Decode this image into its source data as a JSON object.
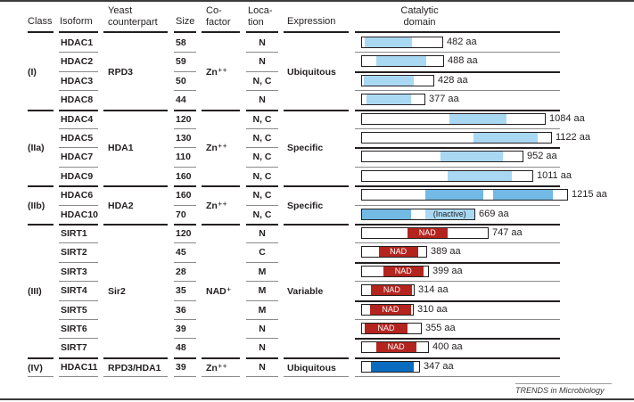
{
  "headers": {
    "class": "Class",
    "isoform": "Isoform",
    "yeast_line1": "Yeast",
    "yeast_line2": "counterpart",
    "size": "Size",
    "cofactor_line1": "Co-",
    "cofactor_line2": "factor",
    "location_line1": "Loca-",
    "location_line2": "tion",
    "expression": "Expression",
    "catalytic_line1": "Catalytic",
    "catalytic_line2": "domain"
  },
  "colors": {
    "class_I_domain": "#a9d8f3",
    "class_IIa_domain": "#a9d8f3",
    "class_IIb_domain": "#72b9e3",
    "class_III_domain": "#b4241f",
    "class_IV_domain": "#0a6cbf",
    "text": "#231f20"
  },
  "groups": [
    {
      "class": "(I)",
      "yeast": "RPD3",
      "cofactor": "Zn⁺⁺",
      "expression": "Ubiquitous",
      "rows": [
        {
          "isoform": "HDAC1",
          "size": "58",
          "location": "N",
          "length_label": "482 aa",
          "length": 482,
          "domains": [
            {
              "start": 0.03,
              "end": 0.62,
              "color": "#a9d8f3",
              "label": ""
            }
          ]
        },
        {
          "isoform": "HDAC2",
          "size": "59",
          "location": "N",
          "length_label": "488 aa",
          "length": 488,
          "domains": [
            {
              "start": 0.18,
              "end": 0.79,
              "color": "#a9d8f3",
              "label": ""
            }
          ]
        },
        {
          "isoform": "HDAC3",
          "size": "50",
          "location": "N, C",
          "length_label": "428 aa",
          "length": 428,
          "domains": [
            {
              "start": 0.02,
              "end": 0.73,
              "color": "#a9d8f3",
              "label": ""
            }
          ]
        },
        {
          "isoform": "HDAC8",
          "size": "44",
          "location": "N",
          "length_label": "377 aa",
          "length": 377,
          "domains": [
            {
              "start": 0.07,
              "end": 0.78,
              "color": "#a9d8f3",
              "label": ""
            }
          ]
        }
      ]
    },
    {
      "class": "(IIa)",
      "yeast": "HDA1",
      "cofactor": "Zn⁺⁺",
      "expression": "Specific",
      "rows": [
        {
          "isoform": "HDAC4",
          "size": "120",
          "location": "N, C",
          "length_label": "1084 aa",
          "length": 1084,
          "domains": [
            {
              "start": 0.48,
              "end": 0.79,
              "color": "#a9d8f3",
              "label": ""
            }
          ]
        },
        {
          "isoform": "HDAC5",
          "size": "130",
          "location": "N, C",
          "length_label": "1122 aa",
          "length": 1122,
          "domains": [
            {
              "start": 0.59,
              "end": 0.93,
              "color": "#a9d8f3",
              "label": ""
            }
          ]
        },
        {
          "isoform": "HDAC7",
          "size": "110",
          "location": "N, C",
          "length_label": "952 aa",
          "length": 952,
          "domains": [
            {
              "start": 0.49,
              "end": 0.88,
              "color": "#a9d8f3",
              "label": ""
            }
          ]
        },
        {
          "isoform": "HDAC9",
          "size": "160",
          "location": "N, C",
          "length_label": "1011 aa",
          "length": 1011,
          "domains": [
            {
              "start": 0.5,
              "end": 0.88,
              "color": "#a9d8f3",
              "label": ""
            }
          ]
        }
      ]
    },
    {
      "class": "(IIb)",
      "yeast": "HDA2",
      "cofactor": "Zn⁺⁺",
      "expression": "Specific",
      "rows": [
        {
          "isoform": "HDAC6",
          "size": "160",
          "location": "N, C",
          "length_label": "1215 aa",
          "length": 1215,
          "domains": [
            {
              "start": 0.31,
              "end": 0.59,
              "color": "#72b9e3",
              "label": ""
            },
            {
              "start": 0.64,
              "end": 0.93,
              "color": "#72b9e3",
              "label": ""
            }
          ]
        },
        {
          "isoform": "HDAC10",
          "size": "70",
          "location": "N, C",
          "length_label": "669 aa",
          "length": 669,
          "domains": [
            {
              "start": 0.0,
              "end": 0.44,
              "color": "#72b9e3",
              "label": ""
            },
            {
              "start": 0.56,
              "end": 1.0,
              "color": "#a9d8f3",
              "label": "(Inactive)"
            }
          ]
        }
      ]
    },
    {
      "class": "(III)",
      "yeast": "Sir2",
      "cofactor": "NAD⁺",
      "expression": "Variable",
      "rows": [
        {
          "isoform": "SIRT1",
          "size": "120",
          "location": "N",
          "length_label": "747 aa",
          "length": 747,
          "domains": [
            {
              "start": 0.36,
              "end": 0.68,
              "color": "#b4241f",
              "label": "NAD"
            }
          ]
        },
        {
          "isoform": "SIRT2",
          "size": "45",
          "location": "C",
          "length_label": "389 aa",
          "length": 389,
          "domains": [
            {
              "start": 0.26,
              "end": 0.87,
              "color": "#b4241f",
              "label": "NAD"
            }
          ]
        },
        {
          "isoform": "SIRT3",
          "size": "28",
          "location": "M",
          "length_label": "399 aa",
          "length": 399,
          "domains": [
            {
              "start": 0.32,
              "end": 0.93,
              "color": "#b4241f",
              "label": "NAD"
            }
          ]
        },
        {
          "isoform": "SIRT4",
          "size": "35",
          "location": "M",
          "length_label": "314 aa",
          "length": 314,
          "domains": [
            {
              "start": 0.18,
              "end": 0.97,
              "color": "#b4241f",
              "label": "NAD"
            }
          ]
        },
        {
          "isoform": "SIRT5",
          "size": "36",
          "location": "M",
          "length_label": "310 aa",
          "length": 310,
          "domains": [
            {
              "start": 0.16,
              "end": 0.96,
              "color": "#b4241f",
              "label": "NAD"
            }
          ]
        },
        {
          "isoform": "SIRT6",
          "size": "39",
          "location": "N",
          "length_label": "355 aa",
          "length": 355,
          "domains": [
            {
              "start": 0.05,
              "end": 0.77,
              "color": "#b4241f",
              "label": "NAD"
            }
          ]
        },
        {
          "isoform": "SIRT7",
          "size": "48",
          "location": "N",
          "length_label": "400 aa",
          "length": 400,
          "domains": [
            {
              "start": 0.21,
              "end": 0.82,
              "color": "#b4241f",
              "label": "NAD"
            }
          ]
        }
      ]
    },
    {
      "class": "(IV)",
      "yeast": "RPD3/HDA1",
      "cofactor": "Zn⁺⁺",
      "expression": "Ubiquitous",
      "rows": [
        {
          "isoform": "HDAC11",
          "size": "39",
          "location": "N",
          "length_label": "347 aa",
          "length": 347,
          "domains": [
            {
              "start": 0.15,
              "end": 0.91,
              "color": "#0a6cbf",
              "label": ""
            }
          ]
        }
      ]
    }
  ],
  "credit": "TRENDS in Microbiology"
}
